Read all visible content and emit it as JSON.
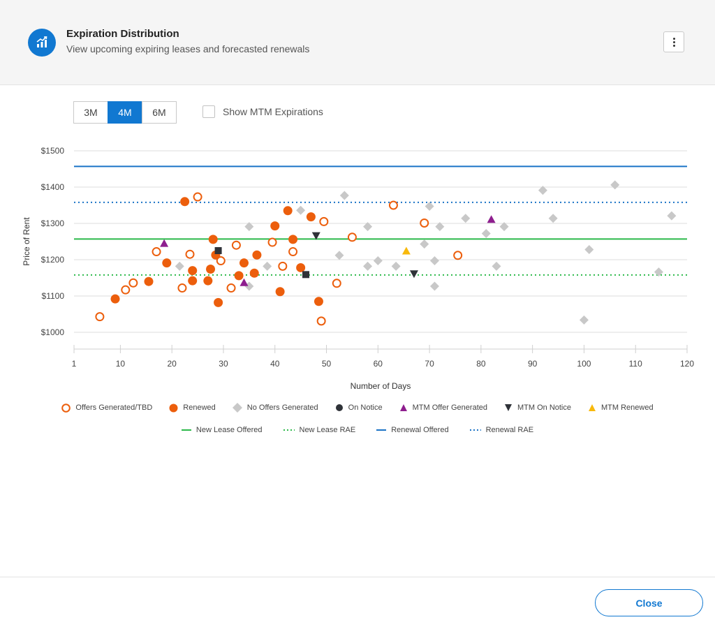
{
  "header": {
    "title": "Expiration Distribution",
    "subtitle": "View upcoming expiring leases and forecasted renewals",
    "icon": "chart-icon",
    "menu_icon": "more-vertical-icon"
  },
  "controls": {
    "ranges": [
      "3M",
      "4M",
      "6M"
    ],
    "active_range": "4M",
    "mtm_label": "Show MTM Expirations",
    "mtm_checked": false
  },
  "colors": {
    "accent": "#1178d1",
    "renewed": "#ec5e0c",
    "no_offer": "#c8c8c8",
    "mtm_offer": "#8e1e8e",
    "mtm_renewed": "#f8b90c",
    "notice": "#2f3238",
    "new_lease": "#2bb94a"
  },
  "chart_data": {
    "type": "scatter",
    "xlabel": "Number of Days",
    "ylabel": "Price of Rent",
    "xlim": [
      1,
      120
    ],
    "ylim": [
      950,
      1500
    ],
    "x_ticks": [
      1,
      10,
      20,
      30,
      40,
      50,
      60,
      70,
      80,
      90,
      100,
      110,
      120
    ],
    "y_ticks": [
      1000,
      1100,
      1200,
      1300,
      1400,
      1500
    ],
    "y_tick_labels": [
      "$1000",
      "$1100",
      "$1200",
      "$1300",
      "$1400",
      "$1500"
    ],
    "grid": "horizontal",
    "series": [
      {
        "name": "Offers Generated/TBD",
        "marker": "circle-open",
        "color": "#ec5e0c",
        "points": [
          [
            6,
            1043
          ],
          [
            11,
            1117
          ],
          [
            12.5,
            1136
          ],
          [
            17,
            1222
          ],
          [
            22,
            1122
          ],
          [
            23.5,
            1215
          ],
          [
            25,
            1373
          ],
          [
            29.5,
            1197
          ],
          [
            31.5,
            1122
          ],
          [
            32.5,
            1240
          ],
          [
            39.5,
            1248
          ],
          [
            41.5,
            1182
          ],
          [
            43.5,
            1222
          ],
          [
            49,
            1031
          ],
          [
            49.5,
            1305
          ],
          [
            52,
            1135
          ],
          [
            55,
            1262
          ],
          [
            63,
            1350
          ],
          [
            69,
            1301
          ],
          [
            75.5,
            1212
          ]
        ]
      },
      {
        "name": "Renewed",
        "marker": "circle",
        "color": "#ec5e0c",
        "points": [
          [
            9,
            1092
          ],
          [
            15.5,
            1140
          ],
          [
            19,
            1191
          ],
          [
            22.5,
            1360
          ],
          [
            24,
            1142
          ],
          [
            24,
            1170
          ],
          [
            27,
            1142
          ],
          [
            27.5,
            1174
          ],
          [
            28,
            1256
          ],
          [
            28.5,
            1213
          ],
          [
            29,
            1082
          ],
          [
            33,
            1156
          ],
          [
            34,
            1191
          ],
          [
            36,
            1163
          ],
          [
            36.5,
            1213
          ],
          [
            40,
            1293
          ],
          [
            41,
            1112
          ],
          [
            42.5,
            1335
          ],
          [
            43.5,
            1256
          ],
          [
            45,
            1178
          ],
          [
            47,
            1318
          ],
          [
            48.5,
            1085
          ]
        ]
      },
      {
        "name": "No Offers Generated",
        "marker": "diamond",
        "color": "#c8c8c8",
        "points": [
          [
            21.5,
            1182
          ],
          [
            35,
            1291
          ],
          [
            35,
            1127
          ],
          [
            38.5,
            1182
          ],
          [
            45,
            1336
          ],
          [
            52.5,
            1212
          ],
          [
            53.5,
            1377
          ],
          [
            58,
            1291
          ],
          [
            58,
            1182
          ],
          [
            60,
            1197
          ],
          [
            63.5,
            1182
          ],
          [
            69,
            1243
          ],
          [
            70,
            1347
          ],
          [
            71,
            1197
          ],
          [
            71,
            1127
          ],
          [
            72,
            1291
          ],
          [
            77,
            1314
          ],
          [
            81,
            1272
          ],
          [
            83,
            1182
          ],
          [
            84.5,
            1291
          ],
          [
            92,
            1391
          ],
          [
            94,
            1314
          ],
          [
            100,
            1034
          ],
          [
            101,
            1228
          ],
          [
            106,
            1406
          ],
          [
            114.5,
            1166
          ],
          [
            117,
            1321
          ]
        ]
      },
      {
        "name": "On Notice",
        "marker": "square",
        "color": "#2f3238",
        "points": [
          [
            29,
            1225
          ],
          [
            46,
            1159
          ]
        ]
      },
      {
        "name": "MTM Offer Generated",
        "marker": "triangle-up",
        "color": "#8e1e8e",
        "points": [
          [
            18.5,
            1245
          ],
          [
            34,
            1137
          ],
          [
            82,
            1311
          ]
        ]
      },
      {
        "name": "MTM On Notice",
        "marker": "triangle-down",
        "color": "#2f3238",
        "points": [
          [
            48,
            1266
          ],
          [
            67,
            1161
          ]
        ]
      },
      {
        "name": "MTM Renewed",
        "marker": "triangle-up",
        "color": "#f8b90c",
        "points": [
          [
            65.5,
            1224
          ]
        ]
      }
    ],
    "reference_lines": [
      {
        "name": "New Lease Offered",
        "y": 1257,
        "style": "solid",
        "color": "#2bb94a"
      },
      {
        "name": "New Lease RAE",
        "y": 1158,
        "style": "dotted",
        "color": "#2bb94a"
      },
      {
        "name": "Renewal Offered",
        "y": 1457,
        "style": "solid",
        "color": "#1a73c6"
      },
      {
        "name": "Renewal RAE",
        "y": 1358,
        "style": "dotted",
        "color": "#1a73c6"
      }
    ]
  },
  "footer": {
    "close_label": "Close"
  }
}
